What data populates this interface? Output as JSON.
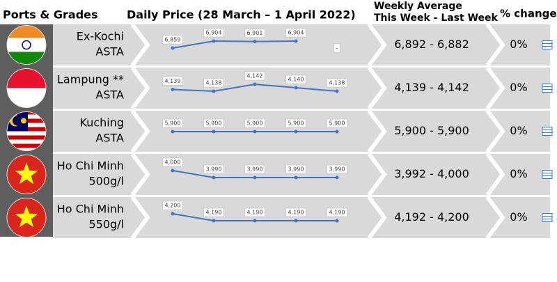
{
  "header": {
    "ports": "Ports & Grades",
    "daily": "Daily Price (28 March – 1 April 2022)",
    "weekly_1": "Weekly Average",
    "weekly_2": "This Week - Last Week",
    "change": "% change"
  },
  "rows": [
    {
      "flag": "india",
      "port": "Ex-Kochi",
      "grade": "ASTA",
      "daily": {
        "type": "line",
        "color": "#4472c4",
        "values": [
          6859,
          6904,
          6901,
          6904,
          null
        ],
        "value_labels": [
          "6,859",
          "6,904",
          "6,901",
          "6,904",
          "-"
        ]
      },
      "weekly": "6,892 - 6,882",
      "change": "0%"
    },
    {
      "flag": "indonesia",
      "port": "Lampung **",
      "grade": "ASTA",
      "daily": {
        "type": "line",
        "color": "#4472c4",
        "values": [
          4139,
          4138,
          4142,
          4140,
          4138
        ],
        "value_labels": [
          "4,139",
          "4,138",
          "4,142",
          "4,140",
          "4,138"
        ]
      },
      "weekly": "4,139 - 4,142",
      "change": "0%"
    },
    {
      "flag": "malaysia",
      "port": "Kuching",
      "grade": "ASTA",
      "daily": {
        "type": "line",
        "color": "#4472c4",
        "values": [
          5900,
          5900,
          5900,
          5900,
          5900
        ],
        "value_labels": [
          "5,900",
          "5,900",
          "5,900",
          "5,900",
          "5,900"
        ]
      },
      "weekly": "5,900 - 5,900",
      "change": "0%"
    },
    {
      "flag": "vietnam",
      "port": "Ho Chi Minh",
      "grade": "500g/l",
      "daily": {
        "type": "line",
        "color": "#4472c4",
        "values": [
          4000,
          3990,
          3990,
          3990,
          3990
        ],
        "value_labels": [
          "4,000",
          "3,990",
          "3,990",
          "3,990",
          "3,990"
        ]
      },
      "weekly": "3,992 - 4,000",
      "change": "0%"
    },
    {
      "flag": "vietnam",
      "port": "Ho Chi Minh",
      "grade": "550g/l",
      "daily": {
        "type": "line",
        "color": "#4472c4",
        "values": [
          4200,
          4190,
          4190,
          4190,
          4190
        ],
        "value_labels": [
          "4,200",
          "4,190",
          "4,190",
          "4,190",
          "4,190"
        ]
      },
      "weekly": "4,192 - 4,200",
      "change": "0%"
    }
  ]
}
